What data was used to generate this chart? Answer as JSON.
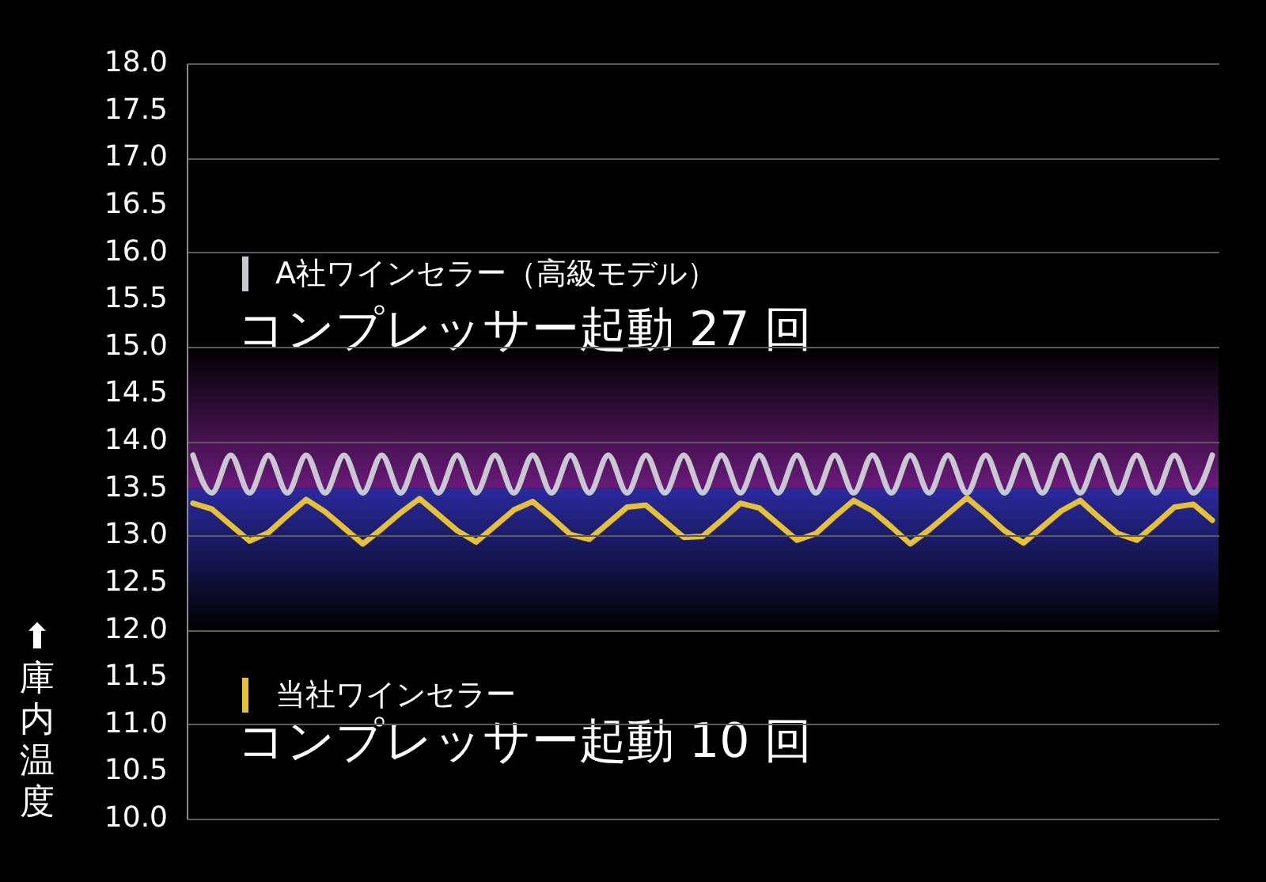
{
  "chart_data": {
    "type": "line",
    "ylabel": "⬆庫内温度",
    "categories": [
      null,
      null,
      null,
      null,
      null,
      null,
      null,
      null,
      null,
      null,
      null,
      null,
      null,
      null,
      null,
      null,
      null,
      null,
      null,
      null,
      null,
      null,
      null,
      null,
      null,
      null,
      null,
      null,
      null,
      null,
      null,
      null,
      null,
      null,
      null,
      null,
      null,
      null,
      null,
      null,
      null,
      null,
      null,
      null,
      null,
      null,
      null,
      null,
      null,
      null,
      null,
      null,
      null,
      null,
      null
    ],
    "ylim": [
      10.0,
      18.0
    ],
    "yticks": [
      {
        "value": 10,
        "label": "10.0"
      },
      {
        "value": 10.5,
        "label": "10.5"
      },
      {
        "value": 11,
        "label": "11.0"
      },
      {
        "value": 11.5,
        "label": "11.5"
      },
      {
        "value": 12,
        "label": "12.0"
      },
      {
        "value": 12.5,
        "label": "12.5"
      },
      {
        "value": 13,
        "label": "13.0"
      },
      {
        "value": 13.5,
        "label": "13.5"
      },
      {
        "value": 14,
        "label": "14.0"
      },
      {
        "value": 14.5,
        "label": "14.5"
      },
      {
        "value": 15,
        "label": "15.0"
      },
      {
        "value": 15.5,
        "label": "15.5"
      },
      {
        "value": 16,
        "label": "16.0"
      },
      {
        "value": 16.5,
        "label": "16.5"
      },
      {
        "value": 17,
        "label": "17.0"
      },
      {
        "value": 17.5,
        "label": "17.5"
      },
      {
        "value": 18,
        "label": "18.0"
      }
    ],
    "tick_labels": "y",
    "grid": "y",
    "legend": "left",
    "marker": "none",
    "line_style": "solid",
    "bands": [
      {
        "axis": "y",
        "from": 13.5,
        "to": 15.0,
        "color": "#6a1a7a"
      },
      {
        "axis": "y",
        "from": 12.0,
        "to": 13.5,
        "color": "#2a2aa0"
      }
    ],
    "series": [
      {
        "name": "A社ワインセラー（高級モデル）",
        "color": "#c8c8d0",
        "values": [
          13.85,
          13.45,
          13.85,
          13.45,
          13.85,
          13.45,
          13.85,
          13.45,
          13.85,
          13.45,
          13.85,
          13.45,
          13.85,
          13.45,
          13.85,
          13.45,
          13.85,
          13.45,
          13.85,
          13.45,
          13.85,
          13.45,
          13.85,
          13.45,
          13.85,
          13.45,
          13.85,
          13.45,
          13.85,
          13.45,
          13.85,
          13.45,
          13.85,
          13.45,
          13.85,
          13.45,
          13.85,
          13.45,
          13.85,
          13.45,
          13.85,
          13.45,
          13.85,
          13.45,
          13.85,
          13.45,
          13.85,
          13.45,
          13.85,
          13.45,
          13.85,
          13.45,
          13.85,
          13.45,
          13.85
        ]
      },
      {
        "name": "当社ワインセラー",
        "color": "#e6c230",
        "values": [
          13.34,
          13.28,
          13.11,
          12.94,
          13.03,
          13.21,
          13.38,
          13.25,
          13.08,
          12.91,
          13.07,
          13.24,
          13.39,
          13.22,
          13.05,
          12.93,
          13.1,
          13.27,
          13.36,
          13.19,
          13.01,
          12.96,
          13.13,
          13.3,
          13.32,
          13.15,
          12.98,
          12.99,
          13.16,
          13.34,
          13.29,
          13.12,
          12.95,
          13.02,
          13.2,
          13.37,
          13.26,
          13.09,
          12.91,
          13.06,
          13.23,
          13.4,
          13.23,
          13.05,
          12.92,
          13.09,
          13.26,
          13.37,
          13.19,
          13.02,
          12.95,
          13.12,
          13.3,
          13.33,
          13.16
        ]
      }
    ],
    "annotations": [
      "コンプレッサー起動 27 回",
      "コンプレッサー起動 10 回"
    ]
  }
}
